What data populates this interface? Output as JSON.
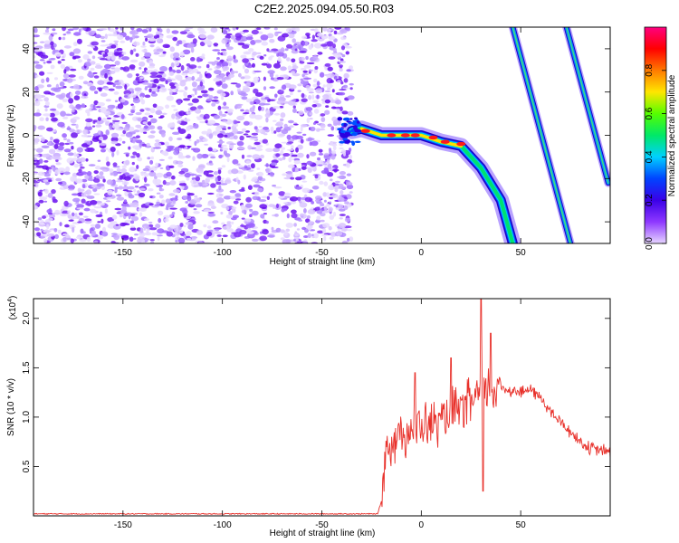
{
  "title": "C2E2.2025.094.05.50.R03",
  "chart_data": [
    {
      "type": "heatmap",
      "xlabel": "Height of straight line (km)",
      "ylabel": "Frequency (Hz)",
      "xlim": [
        -195,
        95
      ],
      "ylim": [
        -50,
        50
      ],
      "xticks": [
        -150,
        -100,
        -50,
        0,
        50
      ],
      "yticks": [
        -40,
        -20,
        0,
        20,
        40
      ],
      "colorbar": {
        "label": "Normalized spectral amplitude",
        "range": [
          0.0,
          1.0
        ],
        "ticks": [
          0.0,
          0.2,
          0.4,
          0.6,
          0.8
        ],
        "tick_labels": [
          "0.0",
          "0.2",
          "0.4",
          "0.6",
          "0.8"
        ],
        "colormap": [
          "#e6d5ff",
          "#8e38ff",
          "#3a00e8",
          "#0044ff",
          "#00d0ff",
          "#00e868",
          "#55ff00",
          "#ffe600",
          "#ff7a00",
          "#ff0000",
          "#ff0080"
        ]
      },
      "features": [
        {
          "name": "noise",
          "x_range": [
            -195,
            -35
          ],
          "y_range": [
            -50,
            50
          ],
          "amplitude": 0.05
        },
        {
          "name": "main_trace",
          "points": [
            [
              -35,
              2
            ],
            [
              -30,
              3
            ],
            [
              -20,
              0
            ],
            [
              -10,
              0
            ],
            [
              0,
              0
            ],
            [
              10,
              -3
            ],
            [
              20,
              -5
            ],
            [
              30,
              -15
            ],
            [
              40,
              -30
            ],
            [
              46,
              -50
            ]
          ],
          "amplitude": 0.9
        },
        {
          "name": "line_2",
          "points": [
            [
              46,
              50
            ],
            [
              75,
              -50
            ]
          ],
          "amplitude": 0.45
        },
        {
          "name": "line_3",
          "points": [
            [
              73,
              50
            ],
            [
              94,
              -22
            ]
          ],
          "amplitude": 0.4
        }
      ]
    },
    {
      "type": "line",
      "xlabel": "Height of straight line (km)",
      "ylabel": "SNR (10 * v/v)",
      "multiplier_label": "(x10",
      "multiplier_exp": "4",
      "multiplier_close": ")",
      "xlim": [
        -195,
        95
      ],
      "ylim": [
        0,
        2.2
      ],
      "xticks": [
        -150,
        -100,
        -50,
        0,
        50
      ],
      "yticks": [
        0.5,
        1.0,
        1.5,
        2.0
      ],
      "ytick_labels": [
        "0.5",
        "1.0",
        "1.5",
        "2.0"
      ],
      "color": "#e8302a",
      "envelope": [
        [
          -195,
          0.02
        ],
        [
          -22,
          0.02
        ],
        [
          -20,
          0.15
        ],
        [
          -18,
          0.7
        ],
        [
          -10,
          0.85
        ],
        [
          0,
          0.9
        ],
        [
          10,
          0.95
        ],
        [
          20,
          1.1
        ],
        [
          25,
          1.15
        ],
        [
          30,
          1.25
        ],
        [
          35,
          1.3
        ],
        [
          40,
          1.3
        ],
        [
          50,
          1.25
        ],
        [
          55,
          1.28
        ],
        [
          60,
          1.2
        ],
        [
          65,
          1.05
        ],
        [
          75,
          0.85
        ],
        [
          80,
          0.75
        ],
        [
          85,
          0.68
        ],
        [
          95,
          0.65
        ]
      ],
      "spikes": [
        [
          -3,
          1.45
        ],
        [
          15,
          1.6
        ],
        [
          30,
          2.2
        ],
        [
          31,
          0.25
        ],
        [
          35,
          1.85
        ]
      ]
    }
  ]
}
